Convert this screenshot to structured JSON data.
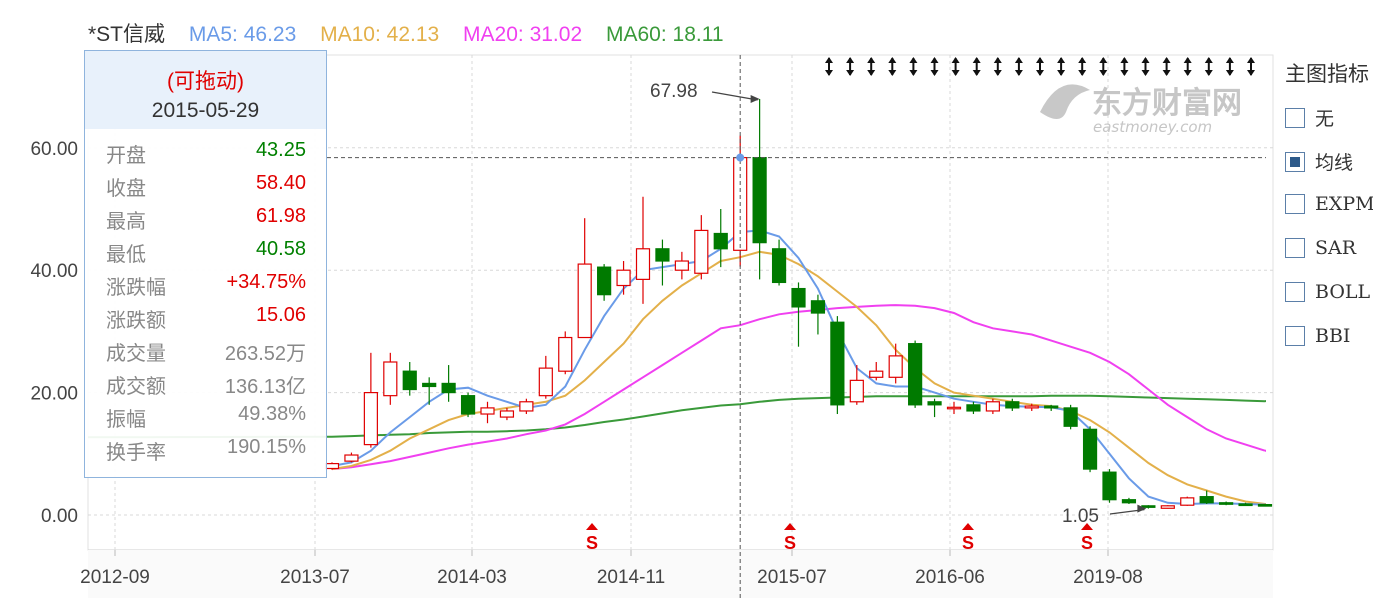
{
  "header": {
    "name": {
      "text": "*ST信威",
      "color": "#333333"
    },
    "ma5": {
      "text": "MA5: 46.23",
      "color": "#6a9be8"
    },
    "ma10": {
      "text": "MA10: 42.13",
      "color": "#e3b04a"
    },
    "ma20": {
      "text": "MA20: 31.02",
      "color": "#f040f0"
    },
    "ma60": {
      "text": "MA60: 18.11",
      "color": "#3a9a3a"
    }
  },
  "tooltip": {
    "drag_label": "(可拖动)",
    "date": "2015-05-29",
    "rows": [
      {
        "label": "开盘",
        "value": "43.25",
        "color": "#008000"
      },
      {
        "label": "收盘",
        "value": "58.40",
        "color": "#e00000"
      },
      {
        "label": "最高",
        "value": "61.98",
        "color": "#e00000"
      },
      {
        "label": "最低",
        "value": "40.58",
        "color": "#008000"
      },
      {
        "label": "涨跌幅",
        "value": "+34.75%",
        "color": "#e00000"
      },
      {
        "label": "涨跌额",
        "value": "15.06",
        "color": "#e00000"
      },
      {
        "label": "成交量",
        "value": "263.52万",
        "color": "#888888"
      },
      {
        "label": "成交额",
        "value": "136.13亿",
        "color": "#888888"
      },
      {
        "label": "振幅",
        "value": "49.38%",
        "color": "#888888"
      },
      {
        "label": "换手率",
        "value": "190.15%",
        "color": "#888888"
      }
    ]
  },
  "side_panel": {
    "title": "主图指标",
    "options": [
      {
        "label": "无",
        "checked": false
      },
      {
        "label": "均线",
        "checked": true
      },
      {
        "label": "EXPMA",
        "checked": false
      },
      {
        "label": "SAR",
        "checked": false
      },
      {
        "label": "BOLL",
        "checked": false
      },
      {
        "label": "BBI",
        "checked": false
      }
    ]
  },
  "watermark": {
    "cn": "东方财富网",
    "en": "eastmoney.com"
  },
  "chart_data": {
    "type": "candlestick",
    "ylim": [
      -5,
      72
    ],
    "y_ticks": [
      "0.00",
      "20.00",
      "40.00",
      "60.00"
    ],
    "x_tick_labels": [
      "2012-09",
      "2013-07",
      "2014-03",
      "2014-11",
      "2015-07",
      "2016-06",
      "2019-08"
    ],
    "up_color": "#e00000",
    "down_color": "#007a00",
    "max_annotation": {
      "label": "67.98",
      "value": 67.98
    },
    "min_annotation": {
      "label": "1.05",
      "value": 1.05
    },
    "crosshair_value": 58.4,
    "s_markers": [
      27,
      35,
      44,
      50
    ],
    "candles": [
      {
        "o": 7.6,
        "c": 8.4,
        "h": 8.6,
        "l": 7.4
      },
      {
        "o": 8.8,
        "c": 9.8,
        "h": 10.2,
        "l": 8.6
      },
      {
        "o": 11.5,
        "c": 20.0,
        "h": 26.5,
        "l": 11.0
      },
      {
        "o": 19.5,
        "c": 25.0,
        "h": 26.5,
        "l": 18.0
      },
      {
        "o": 23.5,
        "c": 20.5,
        "h": 25.0,
        "l": 19.5
      },
      {
        "o": 21.5,
        "c": 21.0,
        "h": 22.5,
        "l": 18.0
      },
      {
        "o": 21.5,
        "c": 20.0,
        "h": 24.5,
        "l": 18.5
      },
      {
        "o": 19.5,
        "c": 16.5,
        "h": 20.0,
        "l": 16.0
      },
      {
        "o": 16.5,
        "c": 17.5,
        "h": 18.5,
        "l": 15.0
      },
      {
        "o": 16.0,
        "c": 17.0,
        "h": 17.5,
        "l": 15.5
      },
      {
        "o": 17.0,
        "c": 18.5,
        "h": 19.0,
        "l": 16.5
      },
      {
        "o": 19.5,
        "c": 24.0,
        "h": 26.0,
        "l": 19.0
      },
      {
        "o": 23.5,
        "c": 29.0,
        "h": 30.0,
        "l": 23.0
      },
      {
        "o": 29.0,
        "c": 41.0,
        "h": 48.5,
        "l": 29.0
      },
      {
        "o": 40.5,
        "c": 36.0,
        "h": 41.0,
        "l": 35.0
      },
      {
        "o": 37.5,
        "c": 40.0,
        "h": 41.5,
        "l": 36.0
      },
      {
        "o": 38.5,
        "c": 43.5,
        "h": 52.0,
        "l": 34.5
      },
      {
        "o": 43.5,
        "c": 41.5,
        "h": 45.0,
        "l": 37.5
      },
      {
        "o": 40.0,
        "c": 41.5,
        "h": 43.0,
        "l": 38.5
      },
      {
        "o": 39.5,
        "c": 46.5,
        "h": 49.0,
        "l": 38.5
      },
      {
        "o": 46.0,
        "c": 43.5,
        "h": 50.0,
        "l": 40.5
      },
      {
        "o": 43.25,
        "c": 58.4,
        "h": 61.98,
        "l": 40.58
      },
      {
        "o": 58.4,
        "c": 44.5,
        "h": 67.98,
        "l": 38.5
      },
      {
        "o": 43.5,
        "c": 38.0,
        "h": 45.0,
        "l": 37.5
      },
      {
        "o": 37.0,
        "c": 34.0,
        "h": 38.0,
        "l": 27.5
      },
      {
        "o": 35.0,
        "c": 33.0,
        "h": 36.0,
        "l": 29.5
      },
      {
        "o": 31.5,
        "c": 18.0,
        "h": 32.5,
        "l": 16.5
      },
      {
        "o": 18.5,
        "c": 22.0,
        "h": 24.5,
        "l": 18.0
      },
      {
        "o": 22.5,
        "c": 23.5,
        "h": 25.0,
        "l": 22.0
      },
      {
        "o": 22.5,
        "c": 26.0,
        "h": 28.0,
        "l": 21.5
      },
      {
        "o": 28.0,
        "c": 18.0,
        "h": 28.5,
        "l": 17.5
      },
      {
        "o": 18.5,
        "c": 18.0,
        "h": 19.0,
        "l": 16.0
      },
      {
        "o": 17.5,
        "c": 17.6,
        "h": 18.5,
        "l": 16.5
      },
      {
        "o": 18.0,
        "c": 17.0,
        "h": 18.5,
        "l": 16.5
      },
      {
        "o": 17.0,
        "c": 18.5,
        "h": 19.0,
        "l": 16.5
      },
      {
        "o": 18.5,
        "c": 17.5,
        "h": 19.0,
        "l": 17.0
      },
      {
        "o": 17.5,
        "c": 17.8,
        "h": 18.2,
        "l": 17.0
      },
      {
        "o": 17.8,
        "c": 17.5,
        "h": 18.0,
        "l": 17.0
      },
      {
        "o": 17.5,
        "c": 14.5,
        "h": 18.0,
        "l": 14.0
      },
      {
        "o": 14.0,
        "c": 7.5,
        "h": 14.5,
        "l": 7.0
      },
      {
        "o": 7.0,
        "c": 2.5,
        "h": 7.5,
        "l": 2.0
      },
      {
        "o": 2.5,
        "c": 2.0,
        "h": 2.8,
        "l": 1.8
      },
      {
        "o": 1.5,
        "c": 1.3,
        "h": 1.6,
        "l": 1.05
      },
      {
        "o": 1.1,
        "c": 1.5,
        "h": 1.6,
        "l": 1.05
      },
      {
        "o": 1.6,
        "c": 2.8,
        "h": 3.0,
        "l": 1.5
      },
      {
        "o": 3.0,
        "c": 2.0,
        "h": 4.0,
        "l": 1.8
      },
      {
        "o": 2.0,
        "c": 1.8,
        "h": 2.2,
        "l": 1.6
      },
      {
        "o": 1.8,
        "c": 1.7,
        "h": 2.0,
        "l": 1.5
      },
      {
        "o": 1.7,
        "c": 1.6,
        "h": 1.8,
        "l": 1.5
      }
    ],
    "ma5": [
      8.0,
      8.6,
      10.5,
      13.5,
      16.0,
      18.5,
      20.5,
      20.8,
      19.5,
      18.5,
      17.5,
      18.0,
      21.0,
      27.0,
      32.5,
      37.0,
      40.0,
      40.5,
      41.0,
      41.5,
      43.5,
      46.23,
      46.5,
      45.5,
      42.0,
      37.0,
      30.0,
      24.0,
      21.5,
      21.0,
      21.0,
      20.0,
      19.0,
      18.5,
      18.0,
      17.8,
      17.7,
      17.6,
      17.0,
      14.0,
      10.0,
      6.0,
      3.0,
      2.0,
      1.8,
      1.9,
      1.9,
      1.8,
      1.7
    ],
    "ma10": [
      7.5,
      8.0,
      9.0,
      10.5,
      12.5,
      14.0,
      15.5,
      16.5,
      17.0,
      17.5,
      18.0,
      18.5,
      19.5,
      22.0,
      25.0,
      28.0,
      32.0,
      35.0,
      37.5,
      39.5,
      41.5,
      42.13,
      43.0,
      42.5,
      41.0,
      39.0,
      36.5,
      34.0,
      31.0,
      27.0,
      24.0,
      21.5,
      20.0,
      19.5,
      19.0,
      18.5,
      18.0,
      17.8,
      17.0,
      15.5,
      13.5,
      11.0,
      8.5,
      6.5,
      5.0,
      4.0,
      3.0,
      2.2,
      1.8
    ],
    "ma20": [
      7.5,
      7.8,
      8.3,
      8.8,
      9.5,
      10.2,
      10.9,
      11.5,
      12.0,
      12.5,
      13.2,
      13.8,
      14.8,
      16.5,
      18.5,
      20.5,
      22.5,
      24.5,
      26.5,
      28.5,
      30.5,
      31.02,
      32.0,
      32.8,
      33.2,
      33.5,
      33.8,
      34.0,
      34.2,
      34.3,
      34.2,
      33.8,
      33.0,
      31.5,
      30.5,
      30.0,
      29.5,
      28.5,
      27.5,
      26.5,
      25.0,
      23.0,
      20.5,
      18.0,
      16.0,
      14.0,
      12.5,
      11.5,
      10.5
    ],
    "ma60": [
      12.8,
      12.9,
      13.0,
      13.1,
      13.2,
      13.4,
      13.5,
      13.6,
      13.6,
      13.7,
      13.8,
      14.0,
      14.3,
      14.7,
      15.2,
      15.6,
      16.1,
      16.6,
      17.1,
      17.5,
      17.9,
      18.11,
      18.5,
      18.8,
      19.0,
      19.1,
      19.2,
      19.3,
      19.4,
      19.4,
      19.4,
      19.4,
      19.4,
      19.4,
      19.4,
      19.4,
      19.4,
      19.5,
      19.5,
      19.5,
      19.4,
      19.3,
      19.2,
      19.1,
      19.0,
      18.9,
      18.8,
      18.7,
      18.6
    ]
  }
}
